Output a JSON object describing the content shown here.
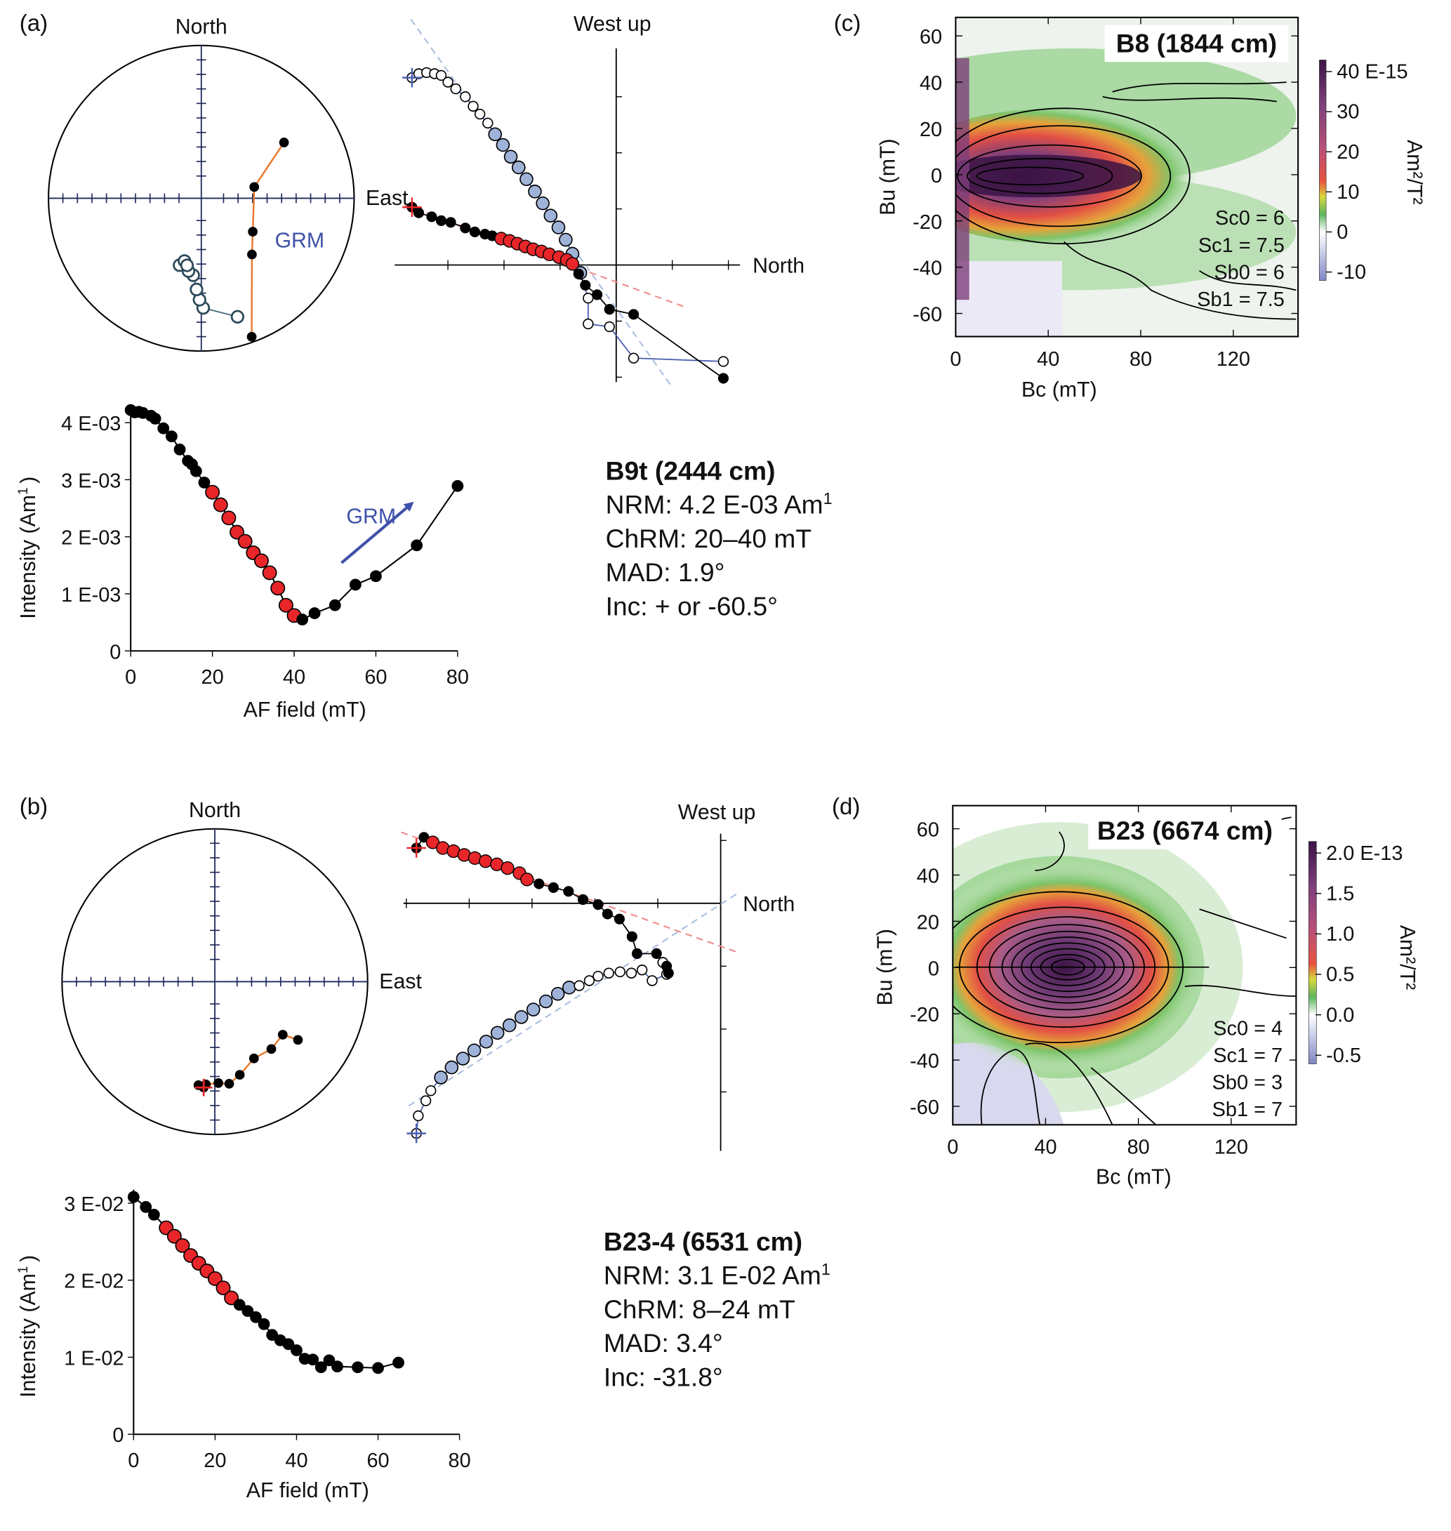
{
  "panels": {
    "a": "(a)",
    "b": "(b)",
    "c": "(c)",
    "d": "(d)"
  },
  "colors": {
    "chrm": "#e8262a",
    "vertical_fit": "#9fb3d9",
    "orange_path": "#e87a2e",
    "open_path": "#4a60b0",
    "grm": "#3f51a8"
  },
  "stereonet_a": {
    "north": "North",
    "east": "East",
    "grm_label": "GRM",
    "filled": [
      [
        56,
        35
      ],
      [
        78,
        61
      ],
      [
        123,
        57
      ],
      [
        138,
        49
      ],
      [
        160,
        4
      ]
    ],
    "open": [
      [
        163,
        -20
      ],
      [
        179,
        -29
      ],
      [
        181,
        -34
      ],
      [
        183,
        -40
      ],
      [
        186,
        -48
      ],
      [
        190,
        -50
      ],
      [
        198,
        -52
      ],
      [
        195,
        -55
      ],
      [
        192,
        -53
      ]
    ]
  },
  "stereonet_b": {
    "north": "North",
    "east": "East",
    "filled": [
      [
        125,
        34
      ],
      [
        128,
        43
      ],
      [
        140,
        42
      ],
      [
        153,
        43
      ],
      [
        165,
        37
      ],
      [
        172,
        33
      ],
      [
        178,
        34
      ],
      [
        185,
        33
      ],
      [
        189,
        32
      ],
      [
        186,
        31
      ]
    ]
  },
  "zijderveld_a": {
    "west_up": "West up",
    "north": "North",
    "horizontal": [
      [
        -3.64,
        1.03
      ],
      [
        -3.52,
        0.93
      ],
      [
        -3.29,
        0.86
      ],
      [
        -3.12,
        0.79
      ],
      [
        -2.95,
        0.76
      ],
      [
        -2.69,
        0.66
      ],
      [
        -2.52,
        0.59
      ],
      [
        -2.34,
        0.55
      ],
      [
        -2.21,
        0.52
      ],
      [
        -2.05,
        0.47
      ],
      [
        -1.9,
        0.43
      ],
      [
        -1.76,
        0.38
      ],
      [
        -1.62,
        0.33
      ],
      [
        -1.48,
        0.28
      ],
      [
        -1.33,
        0.24
      ],
      [
        -1.19,
        0.19
      ],
      [
        -1.02,
        0.14
      ],
      [
        -0.88,
        0.09
      ],
      [
        -0.78,
        0.02
      ],
      [
        -0.67,
        -0.16
      ],
      [
        -0.55,
        -0.36
      ],
      [
        -0.34,
        -0.53
      ],
      [
        -0.12,
        -0.79
      ],
      [
        0.31,
        -0.88
      ],
      [
        1.91,
        -2.02
      ]
    ],
    "horizontal_chrm": [
      9,
      18
    ],
    "vertical": [
      [
        -3.64,
        3.34
      ],
      [
        -3.52,
        3.41
      ],
      [
        -3.38,
        3.43
      ],
      [
        -3.24,
        3.41
      ],
      [
        -3.12,
        3.38
      ],
      [
        -3.0,
        3.26
      ],
      [
        -2.86,
        3.14
      ],
      [
        -2.69,
        3.0
      ],
      [
        -2.55,
        2.83
      ],
      [
        -2.43,
        2.69
      ],
      [
        -2.29,
        2.53
      ],
      [
        -2.16,
        2.33
      ],
      [
        -2.02,
        2.14
      ],
      [
        -1.88,
        1.93
      ],
      [
        -1.74,
        1.74
      ],
      [
        -1.6,
        1.53
      ],
      [
        -1.45,
        1.31
      ],
      [
        -1.31,
        1.1
      ],
      [
        -1.17,
        0.88
      ],
      [
        -1.03,
        0.67
      ],
      [
        -0.9,
        0.45
      ],
      [
        -0.78,
        0.2
      ],
      [
        -0.64,
        -0.14
      ],
      [
        -0.5,
        -0.59
      ],
      [
        -0.5,
        -1.05
      ],
      [
        -0.12,
        -1.1
      ],
      [
        0.31,
        -1.66
      ],
      [
        1.91,
        -1.72
      ]
    ],
    "vertical_chrm": [
      11,
      22
    ],
    "fit_horizontal": [
      [
        -3.78,
        1.07
      ],
      [
        1.26,
        -0.76
      ]
    ],
    "fit_vertical": [
      [
        -3.66,
        4.38
      ],
      [
        0.97,
        -2.14
      ]
    ]
  },
  "zijderveld_b": {
    "west_up": "West up",
    "north": "North",
    "horizontal": [
      [
        -4.84,
        0.88
      ],
      [
        -4.72,
        1.05
      ],
      [
        -4.58,
        0.97
      ],
      [
        -4.42,
        0.88
      ],
      [
        -4.25,
        0.83
      ],
      [
        -4.08,
        0.77
      ],
      [
        -3.91,
        0.72
      ],
      [
        -3.74,
        0.67
      ],
      [
        -3.56,
        0.62
      ],
      [
        -3.39,
        0.56
      ],
      [
        -3.2,
        0.48
      ],
      [
        -3.08,
        0.38
      ],
      [
        -2.89,
        0.31
      ],
      [
        -2.66,
        0.25
      ],
      [
        -2.42,
        0.19
      ],
      [
        -2.19,
        0.06
      ],
      [
        -1.95,
        -0.02
      ],
      [
        -1.8,
        -0.17
      ],
      [
        -1.61,
        -0.25
      ],
      [
        -1.41,
        -0.53
      ],
      [
        -1.33,
        -0.8
      ],
      [
        -1.02,
        -0.8
      ],
      [
        -0.86,
        -1.0
      ],
      [
        -0.83,
        -1.11
      ]
    ],
    "horizontal_chrm": [
      2,
      11
    ],
    "fit_horizontal": [
      [
        -5.08,
        1.13
      ],
      [
        0.27,
        -0.78
      ]
    ],
    "vertical": [
      [
        -4.84,
        -3.66
      ],
      [
        -4.81,
        -3.38
      ],
      [
        -4.69,
        -3.14
      ],
      [
        -4.61,
        -2.98
      ],
      [
        -4.45,
        -2.77
      ],
      [
        -4.28,
        -2.61
      ],
      [
        -4.1,
        -2.47
      ],
      [
        -3.92,
        -2.34
      ],
      [
        -3.73,
        -2.2
      ],
      [
        -3.55,
        -2.06
      ],
      [
        -3.36,
        -1.94
      ],
      [
        -3.17,
        -1.81
      ],
      [
        -2.98,
        -1.69
      ],
      [
        -2.78,
        -1.56
      ],
      [
        -2.59,
        -1.44
      ],
      [
        -2.41,
        -1.34
      ],
      [
        -2.25,
        -1.31
      ],
      [
        -2.09,
        -1.23
      ],
      [
        -1.95,
        -1.16
      ],
      [
        -1.78,
        -1.11
      ],
      [
        -1.6,
        -1.09
      ],
      [
        -1.42,
        -1.11
      ],
      [
        -1.25,
        -1.06
      ],
      [
        -1.09,
        -1.23
      ],
      [
        -0.86,
        -1.13
      ],
      [
        -0.92,
        -0.94
      ]
    ],
    "vertical_chrm": [
      4,
      15
    ],
    "fit_vertical": [
      [
        -4.96,
        -3.22
      ],
      [
        0.27,
        0.16
      ]
    ]
  },
  "intensity_a": {
    "ylabel": "Intensity (Am",
    "ylabel_sup": "1",
    "ylabel_close": ")",
    "xlabel": "AF field (mT)",
    "grm_label": "GRM"
  },
  "intensity_b": {
    "ylabel": "Intensity (Am",
    "ylabel_sup": "1",
    "ylabel_close": ")",
    "xlabel": "AF field (mT)"
  },
  "info_a": {
    "title": "B9t (2444 cm)",
    "nrm": "NRM: 4.2 E-03 Am",
    "nrm_sup": "1",
    "chrm": "ChRM: 20–40 mT",
    "mad": "MAD: 1.9°",
    "inc": "Inc: + or -60.5°"
  },
  "info_b": {
    "title": "B23-4 (6531 cm)",
    "nrm": "NRM: 3.1 E-02 Am",
    "nrm_sup": "1",
    "chrm": "ChRM: 8–24 mT",
    "mad": "MAD: 3.4°",
    "inc": "Inc: -31.8°"
  },
  "forc_c": {
    "title": "B8 (1844 cm)",
    "xlabel": "Bc (mT)",
    "ylabel": "Bu (mT)",
    "units": "Am²/T²",
    "params": [
      "Sc0 = 6",
      "Sc1 = 7.5",
      "Sb0 = 6",
      "Sb1 = 7.5"
    ],
    "colorbar_ticks": [
      "40 E-15",
      "30",
      "20",
      "10",
      "0",
      "-10"
    ]
  },
  "forc_d": {
    "title": "B23 (6674 cm)",
    "xlabel": "Bc (mT)",
    "ylabel": "Bu (mT)",
    "units": "Am²/T²",
    "params": [
      "Sc0 = 4",
      "Sc1 = 7",
      "Sb0 = 3",
      "Sb1 = 7"
    ],
    "colorbar_ticks": [
      "2.0 E-13",
      "1.5",
      "1.0",
      "0.5",
      "0.0",
      "-0.5"
    ]
  },
  "chart_data": [
    {
      "type": "line",
      "panel": "a",
      "xlabel": "AF field (mT)",
      "ylabel": "Intensity (Am⁻¹)",
      "xlim": [
        0,
        80
      ],
      "ylim": [
        0,
        0.0042
      ],
      "xticks": [
        "0",
        "20",
        "40",
        "60",
        "80"
      ],
      "yticks": [
        "0",
        "1 E-03",
        "2 E-03",
        "3 E-03",
        "4 E-03"
      ],
      "x": [
        0,
        1,
        2,
        3,
        5,
        6,
        8,
        10,
        12,
        14,
        15,
        16,
        18,
        20,
        22,
        24,
        26,
        28,
        30,
        32,
        34,
        36,
        38,
        40,
        42,
        45,
        50,
        55,
        60,
        70,
        80
      ],
      "y": [
        0.00422,
        0.00418,
        0.00419,
        0.00417,
        0.00412,
        0.00407,
        0.0039,
        0.00376,
        0.00353,
        0.00333,
        0.00327,
        0.00315,
        0.00295,
        0.00278,
        0.00256,
        0.00233,
        0.00208,
        0.00192,
        0.00172,
        0.00158,
        0.00137,
        0.0011,
        0.0008,
        0.00062,
        0.00055,
        0.00066,
        0.0008,
        0.00116,
        0.00131,
        0.00185,
        0.00289
      ],
      "chrm_range_mT": [
        20,
        40
      ]
    },
    {
      "type": "line",
      "panel": "b",
      "xlabel": "AF field (mT)",
      "ylabel": "Intensity (Am⁻¹)",
      "xlim": [
        0,
        80
      ],
      "ylim": [
        0,
        0.031
      ],
      "xticks": [
        "0",
        "20",
        "40",
        "60",
        "80"
      ],
      "yticks": [
        "0",
        "1 E-02",
        "2 E-02",
        "3 E-02"
      ],
      "x": [
        0,
        3,
        5,
        8,
        10,
        12,
        14,
        16,
        18,
        20,
        22,
        24,
        26,
        28,
        30,
        32,
        34,
        36,
        38,
        40,
        42,
        44,
        46,
        48,
        50,
        55,
        60,
        65
      ],
      "y": [
        0.0308,
        0.0295,
        0.0285,
        0.0268,
        0.0257,
        0.0245,
        0.0232,
        0.0222,
        0.0212,
        0.0202,
        0.019,
        0.0177,
        0.0168,
        0.016,
        0.0152,
        0.0143,
        0.0129,
        0.0122,
        0.0117,
        0.0109,
        0.0098,
        0.0097,
        0.0087,
        0.0096,
        0.0088,
        0.0087,
        0.0086,
        0.0093
      ],
      "chrm_range_mT": [
        8,
        24
      ]
    },
    {
      "type": "heatmap",
      "panel": "c",
      "xlabel": "Bc (mT)",
      "ylabel": "Bu (mT)",
      "xlim": [
        0,
        148
      ],
      "ylim": [
        -70,
        68
      ],
      "xticks": [
        "0",
        "40",
        "80",
        "120"
      ],
      "yticks": [
        "60",
        "40",
        "20",
        "0",
        "-20",
        "-40",
        "-60"
      ],
      "colorbar_range": [
        -1.5e-14,
        4.5e-14
      ]
    },
    {
      "type": "heatmap",
      "panel": "d",
      "xlabel": "Bc (mT)",
      "ylabel": "Bu (mT)",
      "xlim": [
        0,
        148
      ],
      "ylim": [
        -68,
        70
      ],
      "xticks": [
        "0",
        "40",
        "80",
        "120"
      ],
      "yticks": [
        "60",
        "40",
        "20",
        "0",
        "-20",
        "-40",
        "-60"
      ],
      "colorbar_range": [
        -7e-14,
        2.35e-13
      ]
    }
  ]
}
